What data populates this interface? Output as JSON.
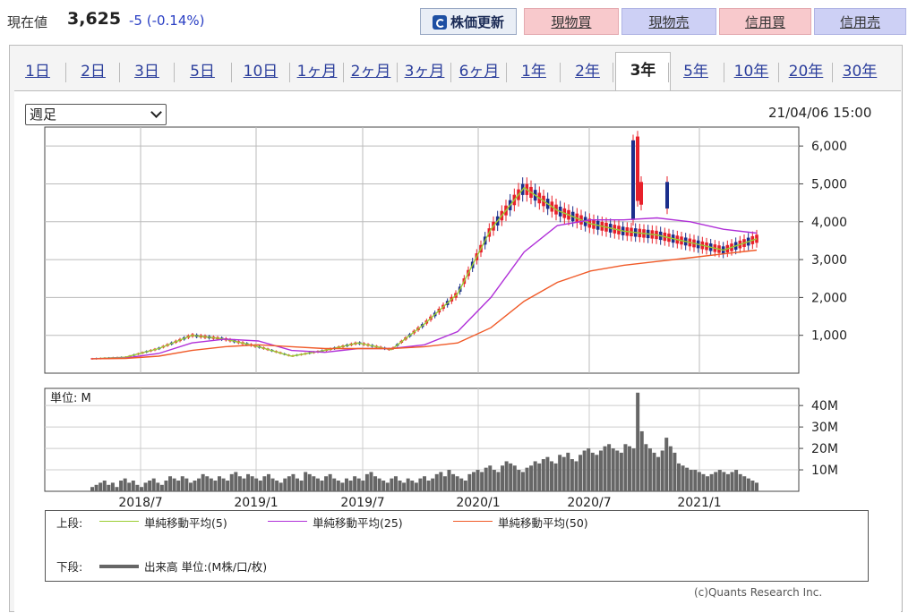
{
  "header": {
    "price_label": "現在値",
    "price_value": "3,625",
    "price_change": "-5 (-0.14%)",
    "update_button": "株価更新",
    "buttons": [
      "現物買",
      "現物売",
      "信用買",
      "信用売"
    ]
  },
  "tabs": [
    "1日",
    "2日",
    "3日",
    "5日",
    "10日",
    "1ヶ月",
    "2ヶ月",
    "3ヶ月",
    "6ヶ月",
    "1年",
    "2年",
    "3年",
    "5年",
    "10年",
    "20年",
    "30年"
  ],
  "active_tab": "3年",
  "controls": {
    "period_select": "週足",
    "datetime": "21/04/06 15:00"
  },
  "chart_data": [
    {
      "type": "line",
      "title": "",
      "x_tick_labels": [
        "2018/7",
        "2019/1",
        "2019/7",
        "2020/1",
        "2020/7",
        "2021/1"
      ],
      "y_tick_labels": [
        "1,000",
        "2,000",
        "3,000",
        "4,000",
        "5,000",
        "6,000"
      ],
      "ylim": [
        0,
        6500
      ],
      "x": [
        "2018/04",
        "2018/07",
        "2018/10",
        "2019/01",
        "2019/04",
        "2019/07",
        "2019/10",
        "2020/01",
        "2020/03",
        "2020/05",
        "2020/06",
        "2020/07",
        "2020/08",
        "2020/09",
        "2020/10",
        "2020/11",
        "2020/12",
        "2021/01",
        "2021/02",
        "2021/03",
        "2021/04"
      ],
      "series": [
        {
          "name": "単純移動平均(5)",
          "color": "#9acd32",
          "values": [
            380,
            420,
            650,
            1000,
            900,
            700,
            450,
            600,
            800,
            620,
            1300,
            2100,
            3800,
            4900,
            4300,
            3950,
            3750,
            3650,
            3450,
            3250,
            3550
          ]
        },
        {
          "name": "単純移動平均(25)",
          "color": "#b030d8",
          "values": [
            380,
            400,
            520,
            800,
            900,
            850,
            600,
            550,
            650,
            650,
            750,
            1100,
            2000,
            3200,
            3900,
            4050,
            4050,
            4100,
            4000,
            3800,
            3700
          ]
        },
        {
          "name": "単純移動平均(50)",
          "color": "#f05a28",
          "values": [
            380,
            390,
            450,
            600,
            700,
            750,
            700,
            650,
            650,
            650,
            700,
            800,
            1200,
            1900,
            2400,
            2700,
            2850,
            2950,
            3050,
            3150,
            3250
          ]
        }
      ]
    },
    {
      "type": "bar",
      "title": "",
      "unit_label": "単位: M",
      "y_tick_labels": [
        "10M",
        "20M",
        "30M",
        "40M"
      ],
      "ylim": [
        0,
        48
      ],
      "series": [
        {
          "name": "出来高 単位:(M株/口/枚)",
          "color": "#666666",
          "values": [
            2,
            3,
            4,
            5,
            3,
            4,
            2,
            5,
            6,
            4,
            5,
            3,
            2,
            4,
            5,
            6,
            4,
            3,
            5,
            7,
            6,
            5,
            7,
            6,
            4,
            5,
            6,
            8,
            7,
            6,
            5,
            7,
            6,
            5,
            8,
            9,
            7,
            6,
            8,
            7,
            6,
            5,
            7,
            8,
            6,
            5,
            4,
            6,
            7,
            8,
            6,
            5,
            9,
            8,
            7,
            6,
            5,
            7,
            8,
            6,
            5,
            4,
            6,
            5,
            7,
            6,
            5,
            8,
            9,
            7,
            6,
            5,
            4,
            6,
            7,
            5,
            4,
            6,
            5,
            4,
            6,
            7,
            5,
            6,
            8,
            9,
            7,
            10,
            8,
            7,
            6,
            5,
            8,
            9,
            10,
            9,
            11,
            12,
            10,
            9,
            12,
            14,
            13,
            12,
            10,
            9,
            11,
            12,
            14,
            13,
            15,
            16,
            14,
            13,
            17,
            16,
            18,
            15,
            14,
            17,
            19,
            20,
            18,
            17,
            19,
            21,
            22,
            20,
            19,
            18,
            22,
            21,
            20,
            46,
            28,
            22,
            20,
            18,
            16,
            19,
            25,
            21,
            18,
            13,
            12,
            11,
            10,
            10,
            9,
            8,
            7,
            8,
            9,
            10,
            9,
            8,
            9,
            10,
            8,
            7,
            6,
            5,
            4
          ]
        }
      ]
    }
  ],
  "legend": {
    "upper_label": "上段:",
    "lower_label": "下段:",
    "items": [
      "単純移動平均(5)",
      "単純移動平均(25)",
      "単純移動平均(50)"
    ],
    "volume_item": "出来高 単位:(M株/口/枚)"
  },
  "copyright": "(c)Quants Research Inc."
}
